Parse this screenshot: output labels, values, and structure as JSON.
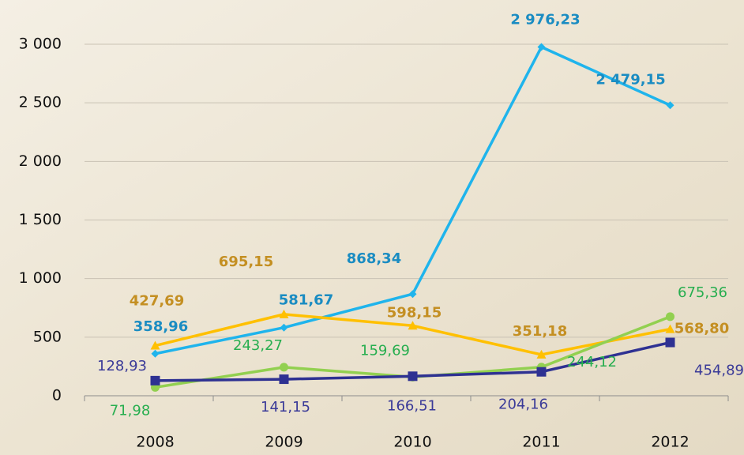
{
  "chart_data": {
    "type": "line",
    "categories": [
      "2008",
      "2009",
      "2010",
      "2011",
      "2012"
    ],
    "series": [
      {
        "color": "#1fb4ec",
        "label_color": "#1a8cc2",
        "marker": "diamond",
        "values": [
          358.96,
          581.67,
          868.34,
          2976.23,
          2479.15
        ],
        "value_labels": [
          "358,96",
          "581,67",
          "868,34",
          "2 976,23",
          "2 479,15"
        ]
      },
      {
        "color": "#ffc000",
        "label_color": "#c48f22",
        "marker": "triangle",
        "values": [
          427.69,
          695.15,
          598.15,
          351.18,
          568.8
        ],
        "value_labels": [
          "427,69",
          "695,15",
          "598,15",
          "351,18",
          "568,80"
        ]
      },
      {
        "color": "#92d050",
        "label_color": "#27ae4f",
        "marker": "circle",
        "values": [
          71.98,
          243.27,
          159.69,
          244.12,
          675.36
        ],
        "value_labels": [
          "71,98",
          "243,27",
          "159,69",
          "244,12",
          "675,36"
        ]
      },
      {
        "color": "#2e3192",
        "label_color": "#3a3a98",
        "marker": "square",
        "values": [
          128.93,
          141.15,
          166.51,
          204.16,
          454.89
        ],
        "value_labels": [
          "128,93",
          "141,15",
          "166,51",
          "204,16",
          "454,89"
        ]
      }
    ],
    "ylim": [
      0,
      3000
    ],
    "yticks": [
      0,
      500,
      {
        "value": 1000,
        "label": "1 000"
      },
      {
        "value": 1500,
        "label": "1 500"
      },
      {
        "value": 2000,
        "label": "2 000"
      },
      {
        "value": 2500,
        "label": "2 500"
      },
      {
        "value": 3000,
        "label": "3 000"
      }
    ],
    "grid": true
  }
}
